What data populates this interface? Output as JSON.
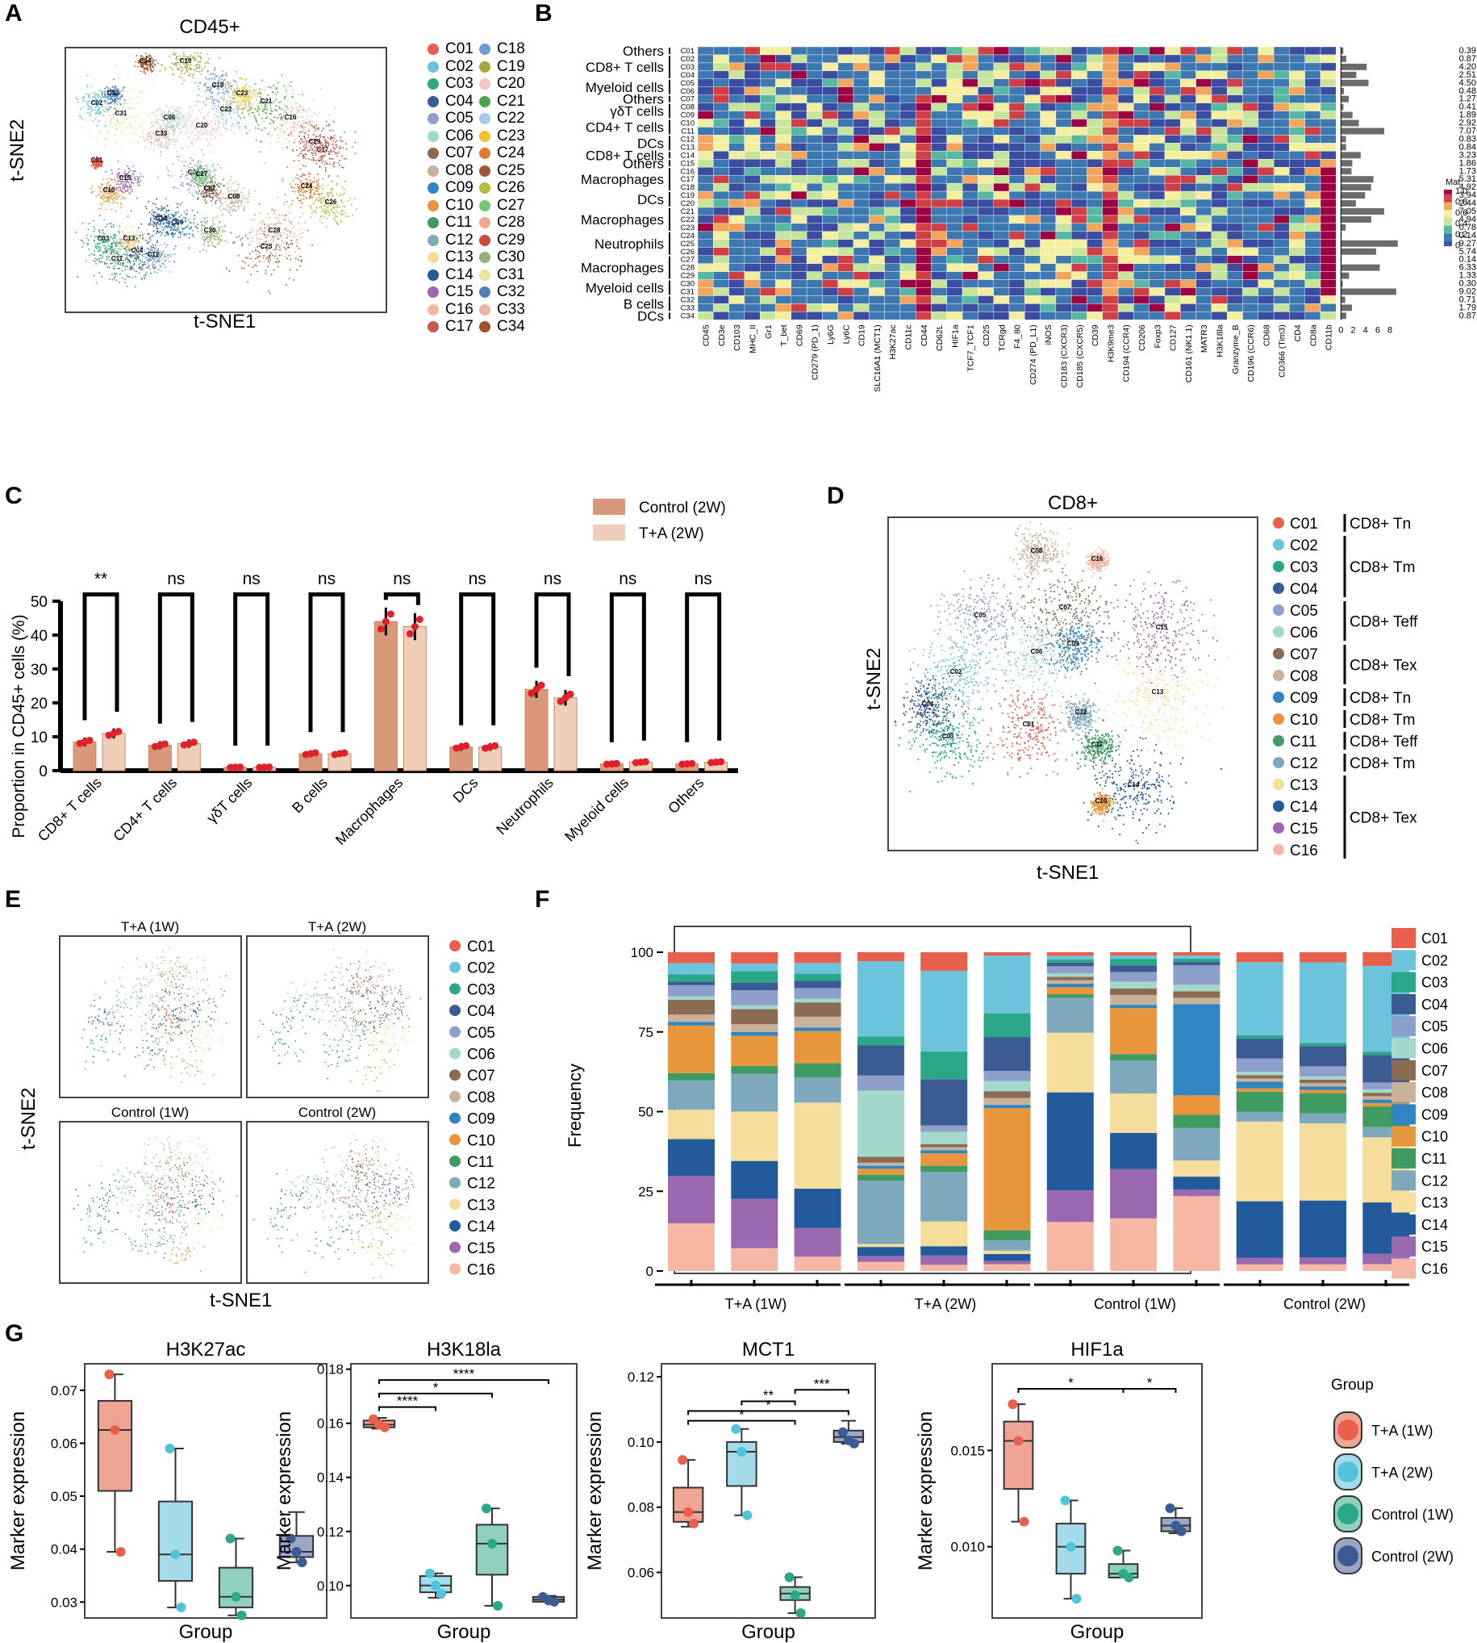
{
  "panelA": {
    "label": "A",
    "title": "CD45+",
    "xlabel": "t-SNE1",
    "ylabel": "t-SNE2",
    "clusters": [
      "C01",
      "C02",
      "C03",
      "C04",
      "C05",
      "C06",
      "C07",
      "C08",
      "C09",
      "C10",
      "C11",
      "C12",
      "C13",
      "C14",
      "C15",
      "C16",
      "C17",
      "C18",
      "C19",
      "C20",
      "C21",
      "C22",
      "C23",
      "C24",
      "C25",
      "C26",
      "C27",
      "C28",
      "C29",
      "C30",
      "C31",
      "C32",
      "C33",
      "C34"
    ],
    "colors": [
      "#e8604c",
      "#6cc4dc",
      "#2aa889",
      "#3b5b92",
      "#8f9fcc",
      "#a3d9cb",
      "#8b6b52",
      "#c9b19a",
      "#2f86c2",
      "#e8963c",
      "#3f9b62",
      "#7ea9bd",
      "#f5de9b",
      "#235a9c",
      "#9b69b0",
      "#f6b8a5",
      "#c75a4e",
      "#6d9bd3",
      "#a5a83a",
      "#f3c6c6",
      "#4aa54a",
      "#a9c8e8",
      "#f0c233",
      "#e07a2c",
      "#9b5a3c",
      "#b5bd3c",
      "#7bc67b",
      "#f4a890",
      "#c84c3c",
      "#8fb37a",
      "#ece49a",
      "#4f7fb5",
      "#e8b4a8",
      "#a0522d"
    ]
  },
  "panelB": {
    "label": "B",
    "legend_title": "Mat",
    "legend_ticks": [
      "1.0",
      "0.8",
      "0.6",
      "0.4",
      "0.2",
      "0"
    ],
    "bar_axis_ticks": [
      "0",
      "2",
      "4",
      "6",
      "8"
    ],
    "row_groups": [
      "Others",
      "CD8+ T cells",
      "Myeloid cells",
      "Others",
      "γδT cells",
      "CD4+ T cells",
      "DCs",
      "CD8+ T cells",
      "Others",
      "Macrophages",
      "DCs",
      "Macrophages",
      "Neutrophils",
      "Macrophages",
      "Myeloid cells",
      "B cells",
      "DCs"
    ],
    "rows": [
      "C01",
      "C02",
      "C03",
      "C04",
      "C05",
      "C06",
      "C07",
      "C08",
      "C09",
      "C10",
      "C11",
      "C12",
      "C13",
      "C14",
      "C15",
      "C16",
      "C17",
      "C18",
      "C19",
      "C20",
      "C21",
      "C22",
      "C23",
      "C24",
      "C25",
      "C26",
      "C27",
      "C28",
      "C29",
      "C30",
      "C31",
      "C32",
      "C33",
      "C34"
    ],
    "row_values": [
      "0.39",
      "0.87",
      "4.20",
      "2.51",
      "4.50",
      "0.48",
      "1.27",
      "0.41",
      "1.89",
      "2.92",
      "7.07",
      "0.83",
      "0.84",
      "3.23",
      "1.86",
      "1.73",
      "5.31",
      "4.92",
      "3.94",
      "2.44",
      "7.05",
      "4.94",
      "0.78",
      "0.14",
      "9.27",
      "5.74",
      "0.14",
      "6.33",
      "1.33",
      "0.30",
      "9.02",
      "0.71",
      "1.79",
      "0.87"
    ],
    "columns": [
      "CD45",
      "CD3e",
      "CD103",
      "MHC_II",
      "Gr1",
      "T_bet",
      "CD69",
      "CD279 (PD_1)",
      "Ly6G",
      "Ly6C",
      "CD19",
      "SLC16A1 (MCT1)",
      "H3K27ac",
      "CD11c",
      "CD44",
      "CD62L",
      "HIF1a",
      "TCF7_TCF1",
      "CD25",
      "TCRgd",
      "F4_80",
      "CD274 (PD_L1)",
      "iNOS",
      "CD183 (CXCR3)",
      "CD185 (CXCR5)",
      "CD39",
      "H3K9me3",
      "CD194 (CCR4)",
      "CD206",
      "Foxp3",
      "CD127",
      "CD161 (NK1.1)",
      "MATR3",
      "H3K18la",
      "Granzyme_B",
      "CD196 (CCR6)",
      "CD68",
      "CD366 (Tim3)",
      "CD4",
      "CD8a",
      "CD11b"
    ]
  },
  "panelC": {
    "label": "C",
    "ylabel": "Proportion in CD45+ cells (%)",
    "chart_data": {
      "type": "bar",
      "categories": [
        "CD8+ T cells",
        "CD4+ T cells",
        "γδT cells",
        "B cells",
        "Macrophages",
        "DCs",
        "Neutrophils",
        "Myeloid cells",
        "Others"
      ],
      "series": [
        {
          "name": "Control (2W)",
          "values": [
            8.5,
            7.5,
            1.0,
            5.0,
            44.0,
            7.0,
            24.0,
            2.0,
            2.0
          ],
          "color": "#d9987a"
        },
        {
          "name": "T+A (2W)",
          "values": [
            11.0,
            8.0,
            1.0,
            5.0,
            42.5,
            7.0,
            21.5,
            2.5,
            2.5
          ],
          "color": "#efcfb8"
        }
      ],
      "ylim": [
        0,
        50
      ],
      "yticks": [
        "0",
        "10",
        "20",
        "30",
        "40",
        "50"
      ],
      "significance": [
        "**",
        "ns",
        "ns",
        "ns",
        "ns",
        "ns",
        "ns",
        "ns",
        "ns"
      ]
    }
  },
  "panelD": {
    "label": "D",
    "title": "CD8+",
    "xlabel": "t-SNE1",
    "ylabel": "t-SNE2",
    "clusters": [
      "C01",
      "C02",
      "C03",
      "C04",
      "C05",
      "C06",
      "C07",
      "C08",
      "C09",
      "C10",
      "C11",
      "C12",
      "C13",
      "C14",
      "C15",
      "C16"
    ],
    "annotations": [
      {
        "text": "CD8+ Tn",
        "from": 0,
        "to": 0
      },
      {
        "text": "CD8+ Tm",
        "from": 1,
        "to": 3
      },
      {
        "text": "CD8+ Teff",
        "from": 4,
        "to": 5
      },
      {
        "text": "CD8+ Tex",
        "from": 6,
        "to": 7
      },
      {
        "text": "CD8+ Tn",
        "from": 8,
        "to": 8
      },
      {
        "text": "CD8+ Tm",
        "from": 9,
        "to": 9
      },
      {
        "text": "CD8+ Teff",
        "from": 10,
        "to": 10
      },
      {
        "text": "CD8+ Tm",
        "from": 11,
        "to": 11
      },
      {
        "text": "CD8+ Tex",
        "from": 12,
        "to": 15
      }
    ]
  },
  "cd8_colors": [
    "#e8604c",
    "#6cc4dc",
    "#2aa889",
    "#3b5b92",
    "#8f9fcc",
    "#a3d9cb",
    "#8b6b52",
    "#c9b19a",
    "#2f86c2",
    "#e8963c",
    "#3f9b62",
    "#7ea9bd",
    "#f5de9b",
    "#235a9c",
    "#9b69b0",
    "#f6b8a5"
  ],
  "panelE": {
    "label": "E",
    "xlabel": "t-SNE1",
    "ylabel": "t-SNE2",
    "subplots": [
      "T+A (1W)",
      "T+A (2W)",
      "Control (1W)",
      "Control (2W)"
    ],
    "clusters": [
      "C01",
      "C02",
      "C03",
      "C04",
      "C05",
      "C06",
      "C07",
      "C08",
      "C09",
      "C10",
      "C11",
      "C12",
      "C13",
      "C14",
      "C15",
      "C16"
    ]
  },
  "panelF": {
    "label": "F",
    "ylabel": "Frequency",
    "yticks": [
      "0",
      "25",
      "50",
      "75",
      "100"
    ],
    "groups": [
      "T+A (1W)",
      "T+A (2W)",
      "Control (1W)",
      "Control (2W)"
    ],
    "legend": [
      "C01",
      "C02",
      "C03",
      "C04",
      "C05",
      "C06",
      "C07",
      "C08",
      "C09",
      "C10",
      "C11",
      "C12",
      "C13",
      "C14",
      "C15",
      "C16"
    ],
    "chart_data": {
      "type": "bar",
      "stacked": true,
      "bars": [
        [
          2,
          1,
          1,
          1,
          1,
          1,
          1,
          2,
          1,
          1,
          4,
          1,
          0,
          0,
          3,
          0,
          0,
          0,
          0,
          0,
          0,
          0,
          0,
          0,
          0,
          0,
          0,
          0,
          0,
          0,
          0,
          0
        ],
        [
          0,
          0,
          0,
          0,
          0,
          0,
          0,
          0,
          0,
          0,
          0,
          0,
          0,
          0,
          0,
          0
        ]
      ],
      "stack_values": [
        [
          3,
          3,
          2,
          1,
          3,
          1,
          4,
          2,
          1,
          13,
          2,
          8,
          8,
          10,
          13,
          13
        ],
        [
          3,
          2,
          3,
          2,
          4,
          1,
          4,
          2,
          1,
          8,
          2,
          10,
          13,
          10,
          13,
          6
        ],
        [
          3,
          3,
          2,
          2,
          3,
          1,
          4,
          3,
          1,
          9,
          4,
          7,
          24,
          11,
          8,
          4
        ],
        [
          3,
          25,
          3,
          10,
          5,
          22,
          2,
          1,
          1,
          2,
          2,
          21,
          1,
          3,
          2,
          3
        ],
        [
          6,
          26,
          9,
          15,
          2,
          4,
          1,
          1,
          1,
          4,
          2,
          16,
          8,
          3,
          3,
          2
        ],
        [
          1,
          17,
          7,
          10,
          3,
          3,
          2,
          2,
          1,
          36,
          3,
          3,
          1,
          2,
          1,
          2
        ],
        [
          1,
          1,
          1,
          1,
          2,
          1,
          1,
          1,
          1,
          2,
          1,
          10,
          17,
          28,
          9,
          14
        ],
        [
          1,
          1,
          2,
          2,
          3,
          2,
          2,
          3,
          1,
          14,
          2,
          10,
          12,
          11,
          15,
          16
        ],
        [
          1,
          1,
          1,
          1,
          6,
          2,
          2,
          2,
          28,
          6,
          4,
          10,
          5,
          4,
          2,
          23
        ],
        [
          3,
          22,
          1,
          6,
          4,
          1,
          1,
          1,
          2,
          1,
          6,
          3,
          24,
          17,
          2,
          2
        ],
        [
          3,
          24,
          1,
          6,
          3,
          1,
          1,
          1,
          1,
          1,
          6,
          3,
          23,
          17,
          2,
          2
        ],
        [
          4,
          25,
          1,
          8,
          2,
          1,
          1,
          1,
          1,
          1,
          6,
          3,
          19,
          15,
          3,
          2
        ]
      ]
    }
  },
  "panelG": {
    "label": "G",
    "xlabel": "Group",
    "ylabel": "Marker expression",
    "legend_title": "Group",
    "groups": [
      "T+A (1W)",
      "T+A (2W)",
      "Control (1W)",
      "Control (2W)"
    ],
    "group_colors": [
      "#e8604c",
      "#52c3dc",
      "#2aa889",
      "#3b5b92"
    ],
    "box_colors": [
      "#efa494",
      "#a4dbe9",
      "#8fd0bf",
      "#9aa6c4"
    ],
    "plots": [
      {
        "title": "H3K27ac",
        "yticks": [
          "0.03",
          "0.04",
          "0.05",
          "0.06",
          "0.07"
        ],
        "ylim": [
          0.027,
          0.075
        ],
        "boxes": [
          {
            "q1": 0.051,
            "med": 0.0625,
            "q3": 0.068,
            "lo": 0.0395,
            "hi": 0.073,
            "pts": [
              0.073,
              0.0625,
              0.0395
            ]
          },
          {
            "q1": 0.034,
            "med": 0.039,
            "q3": 0.049,
            "lo": 0.029,
            "hi": 0.059,
            "pts": [
              0.059,
              0.039,
              0.029
            ]
          },
          {
            "q1": 0.029,
            "med": 0.031,
            "q3": 0.0365,
            "lo": 0.0275,
            "hi": 0.042,
            "pts": [
              0.042,
              0.031,
              0.0275
            ]
          },
          {
            "q1": 0.0385,
            "med": 0.0395,
            "q3": 0.0425,
            "lo": 0.0375,
            "hi": 0.047,
            "pts": [
              0.042,
              0.0395,
              0.0375
            ]
          }
        ],
        "sig": []
      },
      {
        "title": "H3K18la",
        "yticks": [
          "0.10",
          "0.12",
          "0.14",
          "0.16",
          "0.18"
        ],
        "ylim": [
          0.088,
          0.182
        ],
        "boxes": [
          {
            "q1": 0.1585,
            "med": 0.1595,
            "q3": 0.161,
            "lo": 0.158,
            "hi": 0.162,
            "pts": [
              0.1615,
              0.1595,
              0.1585
            ]
          },
          {
            "q1": 0.0975,
            "med": 0.1,
            "q3": 0.1035,
            "lo": 0.0955,
            "hi": 0.1045,
            "pts": [
              0.1045,
              0.1,
              0.097
            ]
          },
          {
            "q1": 0.104,
            "med": 0.1155,
            "q3": 0.1225,
            "lo": 0.0925,
            "hi": 0.1285,
            "pts": [
              0.1285,
              0.1155,
              0.0925
            ]
          },
          {
            "q1": 0.094,
            "med": 0.0948,
            "q3": 0.0958,
            "lo": 0.094,
            "hi": 0.0962,
            "pts": [
              0.0958,
              0.0945,
              0.094
            ]
          }
        ],
        "sig": [
          {
            "a": 0,
            "b": 1,
            "y": 0.166,
            "t": "****"
          },
          {
            "a": 0,
            "b": 2,
            "y": 0.171,
            "t": "*"
          },
          {
            "a": 0,
            "b": 3,
            "y": 0.176,
            "t": "****"
          }
        ]
      },
      {
        "title": "MCT1",
        "yticks": [
          "0.06",
          "0.08",
          "0.10",
          "0.12"
        ],
        "ylim": [
          0.046,
          0.124
        ],
        "boxes": [
          {
            "q1": 0.0755,
            "med": 0.0785,
            "q3": 0.086,
            "lo": 0.074,
            "hi": 0.0945,
            "pts": [
              0.0945,
              0.0785,
              0.075
            ]
          },
          {
            "q1": 0.0865,
            "med": 0.097,
            "q3": 0.1,
            "lo": 0.0775,
            "hi": 0.104,
            "pts": [
              0.104,
              0.097,
              0.0775
            ]
          },
          {
            "q1": 0.0515,
            "med": 0.0535,
            "q3": 0.0555,
            "lo": 0.0475,
            "hi": 0.0585,
            "pts": [
              0.0585,
              0.053,
              0.0475
            ]
          },
          {
            "q1": 0.1,
            "med": 0.1015,
            "q3": 0.1035,
            "lo": 0.0995,
            "hi": 0.1065,
            "pts": [
              0.103,
              0.1005,
              0.0995
            ]
          }
        ],
        "sig": [
          {
            "a": 0,
            "b": 2,
            "y": 0.1065,
            "t": "*"
          },
          {
            "a": 0,
            "b": 3,
            "y": 0.1095,
            "t": "*"
          },
          {
            "a": 1,
            "b": 2,
            "y": 0.1125,
            "t": "**"
          },
          {
            "a": 2,
            "b": 3,
            "y": 0.116,
            "t": "***"
          }
        ]
      },
      {
        "title": "HIF1a",
        "yticks": [
          "0.010",
          "0.015"
        ],
        "ylim": [
          0.0063,
          0.0195
        ],
        "boxes": [
          {
            "q1": 0.013,
            "med": 0.0155,
            "q3": 0.0165,
            "lo": 0.0113,
            "hi": 0.0174,
            "pts": [
              0.0174,
              0.0155,
              0.0113
            ]
          },
          {
            "q1": 0.0086,
            "med": 0.01,
            "q3": 0.0112,
            "lo": 0.0073,
            "hi": 0.0124,
            "pts": [
              0.0124,
              0.01,
              0.0073
            ]
          },
          {
            "q1": 0.0084,
            "med": 0.0086,
            "q3": 0.0091,
            "lo": 0.0084,
            "hi": 0.0098,
            "pts": [
              0.0098,
              0.0086,
              0.0084
            ]
          },
          {
            "q1": 0.0108,
            "med": 0.0111,
            "q3": 0.0115,
            "lo": 0.0107,
            "hi": 0.012,
            "pts": [
              0.012,
              0.0111,
              0.0108
            ]
          }
        ],
        "sig": [
          {
            "a": 0,
            "b": 2,
            "y": 0.0182,
            "t": "*"
          },
          {
            "a": 2,
            "b": 3,
            "y": 0.0182,
            "t": "*"
          }
        ]
      }
    ]
  }
}
